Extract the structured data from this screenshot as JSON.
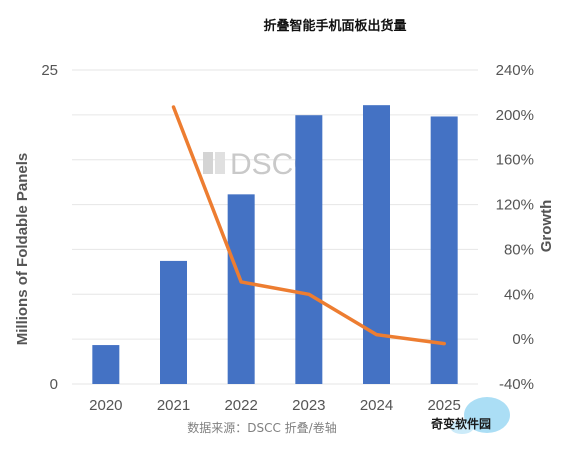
{
  "chart_data": {
    "type": "bar+line",
    "title": "折叠智能手机面板出货量",
    "categories": [
      "2020",
      "2021",
      "2022",
      "2023",
      "2024",
      "2025"
    ],
    "series": [
      {
        "type": "bar",
        "axis": "left",
        "values": [
          3.1,
          9.8,
          15.1,
          21.4,
          22.2,
          21.3
        ]
      },
      {
        "type": "line",
        "axis": "right",
        "values": [
          null,
          207,
          51,
          40,
          4,
          -4
        ]
      }
    ],
    "ylabel": "Millions of Foldable Panels",
    "ylim": [
      0,
      25
    ],
    "yticks": [
      "0",
      "25"
    ],
    "y2label": "Growth",
    "y2lim": [
      -40,
      240
    ],
    "y2ticks": [
      "-40%",
      "0%",
      "40%",
      "80%",
      "120%",
      "160%",
      "200%",
      "240%"
    ],
    "grid": true,
    "legend": "none"
  },
  "colors": {
    "bar": "#4472C4",
    "line": "#ED7D31",
    "grid": "#e6e6e6"
  },
  "source": "数据来源：DSCC 折叠/卷轴",
  "watermark": "DSCC",
  "badge": "奇变软件园"
}
